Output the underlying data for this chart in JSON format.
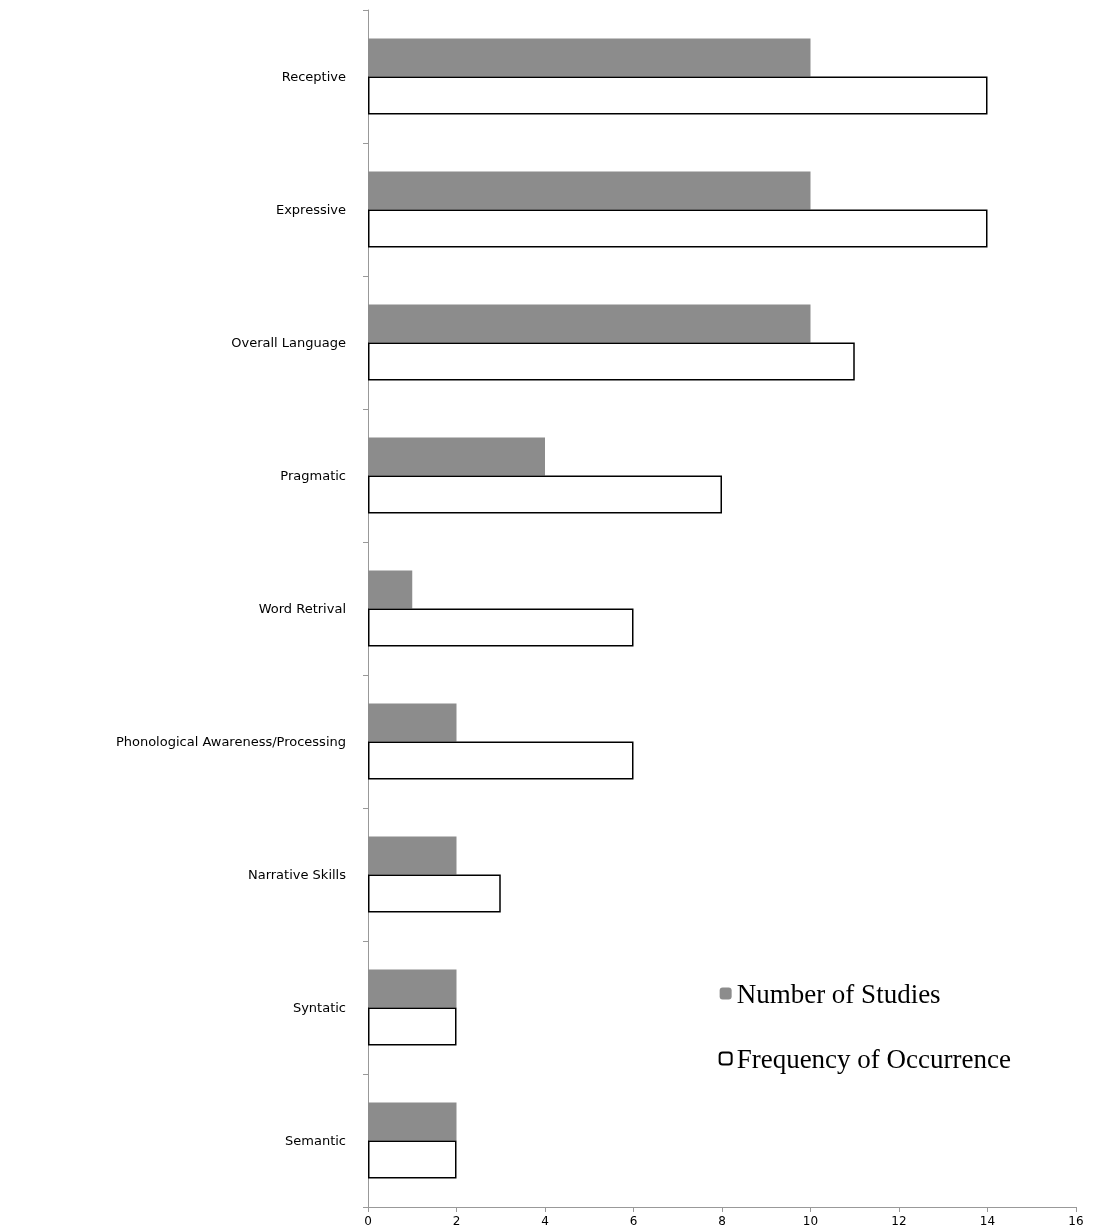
{
  "chart_data": {
    "type": "bar",
    "orientation": "horizontal",
    "categories": [
      "Receptive",
      "Expressive",
      "Overall Language",
      "Pragmatic",
      "Word Retrival",
      "Phonological Awareness/Processing",
      "Narrative Skills",
      "Syntatic",
      "Semantic"
    ],
    "series": [
      {
        "name": "Number of Studies",
        "color": "#8c8c8c",
        "values": [
          10,
          10,
          10,
          4,
          1,
          2,
          2,
          2,
          2
        ]
      },
      {
        "name": "Frequency of Occurrence",
        "color": "#ffffff",
        "values": [
          14,
          14,
          11,
          8,
          6,
          6,
          3,
          2,
          2
        ]
      }
    ],
    "xlim": [
      0,
      16
    ],
    "xticks": [
      0,
      2,
      4,
      6,
      8,
      10,
      12,
      14,
      16
    ],
    "grid": false,
    "legend": "bottom right"
  }
}
